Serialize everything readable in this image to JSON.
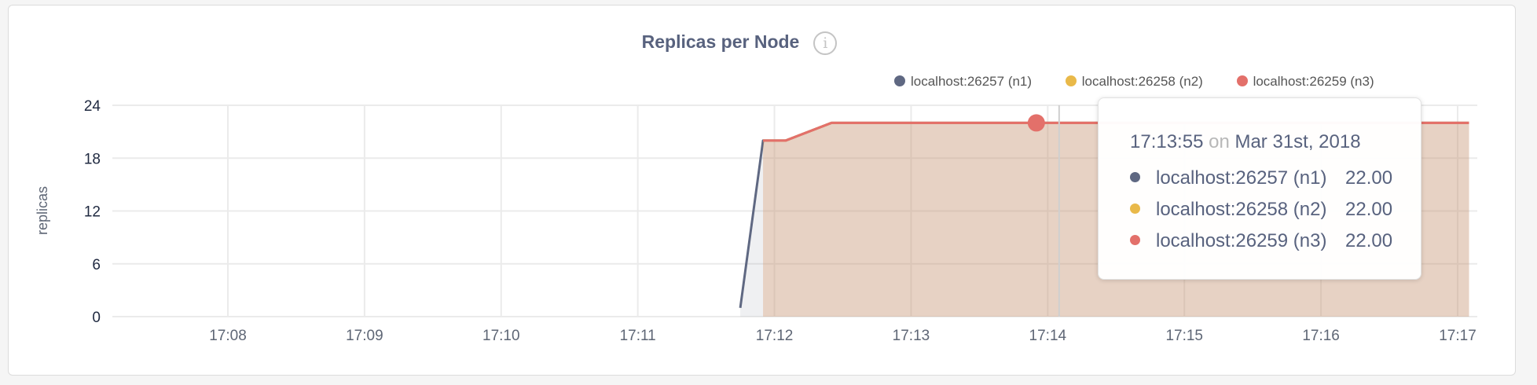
{
  "chart_data": {
    "type": "area",
    "title": "Replicas per Node",
    "ylabel": "replicas",
    "xlabel": "",
    "ylim": [
      0,
      24
    ],
    "yticks": [
      "0",
      "6",
      "12",
      "18",
      "24"
    ],
    "xlim": [
      "17:07:26",
      "17:17:10"
    ],
    "xticks": [
      "17:08",
      "17:09",
      "17:10",
      "17:11",
      "17:12",
      "17:13",
      "17:14",
      "17:15",
      "17:16",
      "17:17"
    ],
    "grid": true,
    "legend_position": "top-right",
    "series": [
      {
        "name": "localhost:26257 (n1)",
        "color": "#5f6882",
        "x": [
          "17:11:45",
          "17:11:55",
          "17:12:05",
          "17:12:25",
          "17:17:05"
        ],
        "y": [
          1,
          20,
          20,
          22,
          22
        ]
      },
      {
        "name": "localhost:26258 (n2)",
        "color": "#e9b949",
        "x": [
          "17:11:55",
          "17:12:05",
          "17:12:25",
          "17:17:05"
        ],
        "y": [
          20,
          20,
          22,
          22
        ]
      },
      {
        "name": "localhost:26259 (n3)",
        "color": "#e3706a",
        "x": [
          "17:11:55",
          "17:12:05",
          "17:12:25",
          "17:17:05"
        ],
        "y": [
          20,
          20,
          22,
          22
        ]
      }
    ]
  },
  "info_icon": "info-circle-icon",
  "tooltip": {
    "time": "17:13:55",
    "on": "on",
    "date": "Mar 31st, 2018",
    "rows": [
      {
        "label": "localhost:26257 (n1)",
        "value": "22.00",
        "color": "#5f6882"
      },
      {
        "label": "localhost:26258 (n2)",
        "value": "22.00",
        "color": "#e9b949"
      },
      {
        "label": "localhost:26259 (n3)",
        "value": "22.00",
        "color": "#e3706a"
      }
    ]
  }
}
